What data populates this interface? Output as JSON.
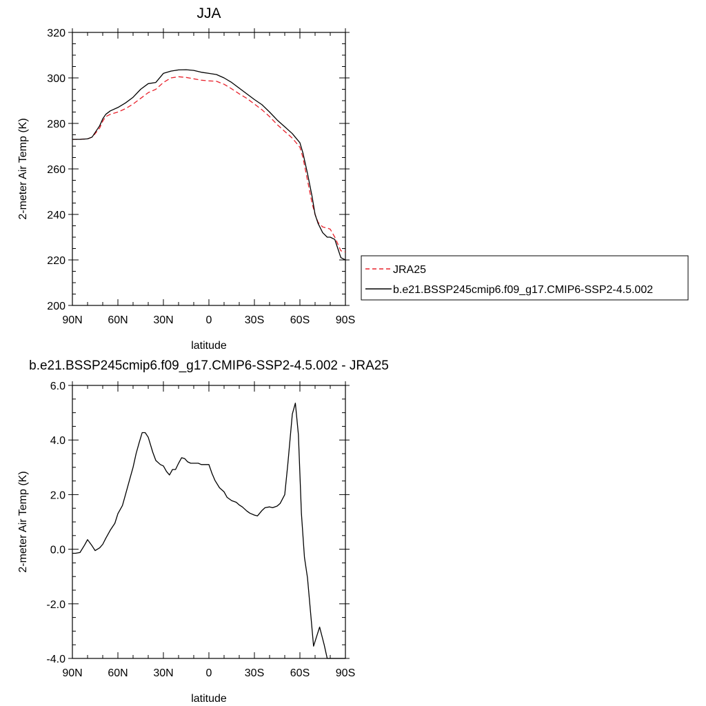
{
  "chart_data": [
    {
      "type": "line",
      "title": "JJA",
      "xlabel": "latitude",
      "ylabel": "2-meter Air Temp (K)",
      "xlim": [
        -90,
        90
      ],
      "ylim": [
        200,
        320
      ],
      "x_ticks": [
        -90,
        -60,
        -30,
        0,
        30,
        60,
        90
      ],
      "x_tick_labels": [
        "90N",
        "60N",
        "30N",
        "0",
        "30S",
        "60S",
        "90S"
      ],
      "y_ticks": [
        200,
        220,
        240,
        260,
        280,
        300,
        320
      ],
      "y_tick_labels": [
        "200",
        "220",
        "240",
        "260",
        "280",
        "300",
        "320"
      ],
      "legend_position": "right",
      "series": [
        {
          "name": "JRA25",
          "color": "#e8202a",
          "dash": "dashed",
          "x": [
            -90,
            -85,
            -80,
            -77,
            -75,
            -72,
            -70,
            -68,
            -65,
            -60,
            -55,
            -50,
            -45,
            -40,
            -35,
            -30,
            -25,
            -20,
            -15,
            -10,
            -5,
            0,
            5,
            10,
            15,
            20,
            25,
            30,
            35,
            40,
            45,
            50,
            55,
            60,
            62,
            65,
            68,
            70,
            72,
            75,
            78,
            80,
            83,
            85,
            87,
            90
          ],
          "y": [
            273,
            273,
            273.2,
            274,
            275.5,
            278,
            281,
            283,
            284,
            285,
            286.5,
            288.5,
            291,
            293.5,
            295,
            298,
            300,
            300.5,
            300.2,
            299.6,
            299,
            298.7,
            298.5,
            297.2,
            295.2,
            293,
            291,
            288.5,
            286,
            283,
            279.5,
            276.5,
            273.5,
            269.5,
            265,
            255,
            245,
            240,
            236.5,
            234.5,
            234,
            233.5,
            230,
            227,
            224,
            223.5
          ]
        },
        {
          "name": "b.e21.BSSP245cmip6.f09_g17.CMIP6-SSP2-4.5.002",
          "color": "#000000",
          "dash": "solid",
          "x": [
            -90,
            -85,
            -80,
            -77,
            -75,
            -72,
            -70,
            -68,
            -65,
            -60,
            -55,
            -50,
            -45,
            -40,
            -35,
            -30,
            -25,
            -20,
            -15,
            -10,
            -5,
            0,
            5,
            10,
            15,
            20,
            25,
            30,
            35,
            40,
            45,
            50,
            55,
            60,
            62,
            65,
            68,
            70,
            72,
            75,
            78,
            80,
            83,
            85,
            87,
            90
          ],
          "y": [
            273,
            273,
            273.2,
            274,
            276,
            279,
            282,
            284,
            285.5,
            287,
            289,
            291.5,
            295,
            297.5,
            298,
            302,
            303,
            303.5,
            303.6,
            303.3,
            302.5,
            302,
            301.5,
            300,
            298,
            295.5,
            293,
            290.5,
            288.2,
            285,
            281.5,
            278.5,
            275.5,
            271.5,
            267,
            258,
            248,
            240,
            236,
            232,
            230,
            230,
            229,
            225,
            221,
            220
          ]
        }
      ]
    },
    {
      "type": "line",
      "title": "b.e21.BSSP245cmip6.f09_g17.CMIP6-SSP2-4.5.002 - JRA25",
      "xlabel": "latitude",
      "ylabel": "2-meter Air Temp (K)",
      "xlim": [
        -90,
        90
      ],
      "ylim": [
        -4,
        6
      ],
      "x_ticks": [
        -90,
        -60,
        -30,
        0,
        30,
        60,
        90
      ],
      "x_tick_labels": [
        "90N",
        "60N",
        "30N",
        "0",
        "30S",
        "60S",
        "90S"
      ],
      "y_ticks": [
        -4,
        -2,
        0,
        2,
        4,
        6
      ],
      "y_tick_labels": [
        "-4.0",
        "-2.0",
        "0.0",
        "2.0",
        "4.0",
        "6.0"
      ],
      "series": [
        {
          "color": "#000000",
          "dash": "solid",
          "x": [
            -90,
            -88,
            -85,
            -82,
            -80,
            -77,
            -75,
            -72,
            -70,
            -68,
            -65,
            -62,
            -60,
            -57,
            -55,
            -52,
            -50,
            -48,
            -46,
            -44,
            -42,
            -40,
            -37,
            -35,
            -32,
            -30,
            -28,
            -26,
            -24,
            -22,
            -20,
            -18,
            -16,
            -14,
            -12,
            -10,
            -7,
            -5,
            0,
            2,
            4,
            7,
            10,
            12,
            15,
            18,
            20,
            22,
            25,
            27,
            30,
            32,
            35,
            37,
            40,
            42,
            45,
            47,
            50,
            52,
            55,
            57,
            59,
            61,
            63,
            65,
            67,
            69,
            71,
            73,
            76,
            78,
            80,
            83,
            85,
            87,
            90
          ],
          "y": [
            -0.15,
            -0.15,
            -0.12,
            0.15,
            0.35,
            0.12,
            -0.05,
            0.05,
            0.18,
            0.4,
            0.7,
            0.95,
            1.3,
            1.6,
            2.0,
            2.6,
            3.0,
            3.5,
            3.9,
            4.27,
            4.27,
            4.1,
            3.55,
            3.25,
            3.1,
            3.05,
            2.85,
            2.72,
            2.92,
            2.92,
            3.15,
            3.35,
            3.32,
            3.2,
            3.15,
            3.15,
            3.15,
            3.1,
            3.1,
            2.78,
            2.52,
            2.25,
            2.1,
            1.9,
            1.78,
            1.72,
            1.62,
            1.55,
            1.4,
            1.32,
            1.25,
            1.22,
            1.42,
            1.52,
            1.55,
            1.52,
            1.58,
            1.68,
            2.0,
            3.1,
            4.95,
            5.35,
            4.2,
            1.3,
            -0.3,
            -1.05,
            -2.3,
            -3.55,
            -3.2,
            -2.85,
            -3.5,
            -4.0,
            -4.0,
            -4.0,
            -4.0,
            -4.0,
            -4.0
          ]
        }
      ]
    }
  ]
}
